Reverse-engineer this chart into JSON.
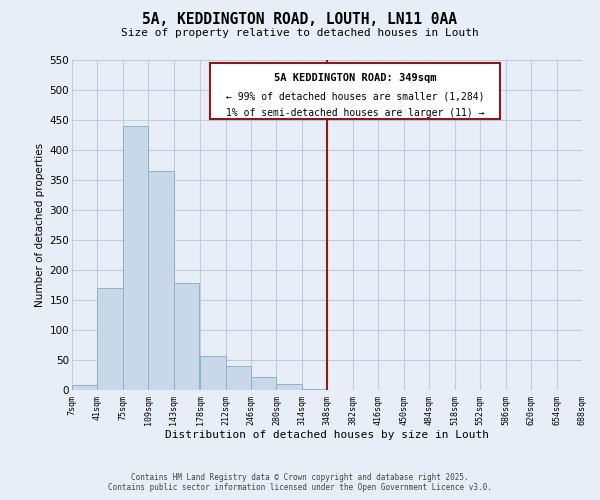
{
  "title": "5A, KEDDINGTON ROAD, LOUTH, LN11 0AA",
  "subtitle": "Size of property relative to detached houses in Louth",
  "xlabel": "Distribution of detached houses by size in Louth",
  "ylabel": "Number of detached properties",
  "bar_color": "#c8d8e8",
  "bar_edge_color": "#8ab4cc",
  "grid_color": "#c0ccdd",
  "background_color": "#e8eef8",
  "bin_edges": [
    7,
    41,
    75,
    109,
    143,
    178,
    212,
    246,
    280,
    314,
    348,
    382,
    416,
    450,
    484,
    518,
    552,
    586,
    620,
    654,
    688
  ],
  "bin_labels": [
    "7sqm",
    "41sqm",
    "75sqm",
    "109sqm",
    "143sqm",
    "178sqm",
    "212sqm",
    "246sqm",
    "280sqm",
    "314sqm",
    "348sqm",
    "382sqm",
    "416sqm",
    "450sqm",
    "484sqm",
    "518sqm",
    "552sqm",
    "586sqm",
    "620sqm",
    "654sqm",
    "688sqm"
  ],
  "counts": [
    8,
    170,
    440,
    365,
    178,
    57,
    40,
    22,
    10,
    2,
    0,
    0,
    0,
    0,
    0,
    0,
    0,
    0,
    0,
    0
  ],
  "ylim": [
    0,
    550
  ],
  "yticks": [
    0,
    50,
    100,
    150,
    200,
    250,
    300,
    350,
    400,
    450,
    500,
    550
  ],
  "property_line_x": 348,
  "property_line_color": "#8b1a1a",
  "annotation_title": "5A KEDDINGTON ROAD: 349sqm",
  "annotation_line1": "← 99% of detached houses are smaller (1,284)",
  "annotation_line2": "1% of semi-detached houses are larger (11) →",
  "annotation_box_color": "#ffffff",
  "annotation_border_color": "#8b1a1a",
  "footer_line1": "Contains HM Land Registry data © Crown copyright and database right 2025.",
  "footer_line2": "Contains public sector information licensed under the Open Government Licence v3.0."
}
